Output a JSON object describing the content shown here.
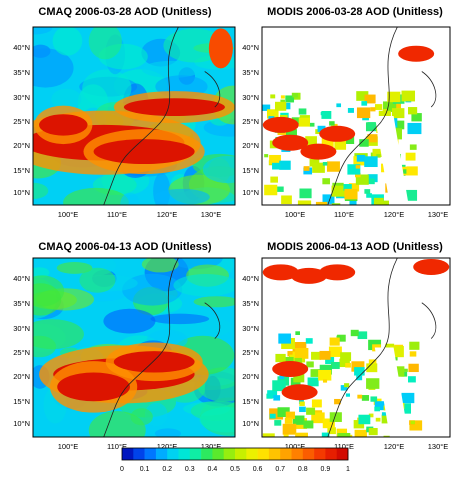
{
  "panels": [
    {
      "title": "CMAQ 2006-03-28 AOD (Unitless)",
      "lat_labels": [
        "40°N",
        "35°N",
        "30°N",
        "25°N",
        "20°N",
        "15°N",
        "10°N"
      ],
      "lon_labels": [
        "100°E",
        "110°E",
        "120°E",
        "130°E"
      ]
    },
    {
      "title": "MODIS 2006-03-28 AOD (Unitless)",
      "lat_labels": [
        "40°N",
        "35°N",
        "30°N",
        "25°N",
        "20°N",
        "15°N",
        "10°N"
      ],
      "lon_labels": [
        "100°E",
        "110°E",
        "120°E",
        "130°E"
      ]
    },
    {
      "title": "CMAQ 2006-04-13 AOD (Unitless)",
      "lat_labels": [
        "40°N",
        "35°N",
        "30°N",
        "25°N",
        "20°N",
        "15°N",
        "10°N"
      ],
      "lon_labels": [
        "100°E",
        "110°E",
        "120°E",
        "130°E"
      ]
    },
    {
      "title": "MODIS 2006-04-13 AOD (Unitless)",
      "lat_labels": [
        "40°N",
        "35°N",
        "30°N",
        "25°N",
        "20°N",
        "15°N",
        "10°N"
      ],
      "lon_labels": [
        "100°E",
        "110°E",
        "120°E",
        "130°E"
      ]
    }
  ],
  "colorbar": {
    "labels": [
      "0",
      "0.1",
      "0.2",
      "0.3",
      "0.4",
      "0.5",
      "0.6",
      "0.7",
      "0.8",
      "0.9",
      "1"
    ]
  }
}
